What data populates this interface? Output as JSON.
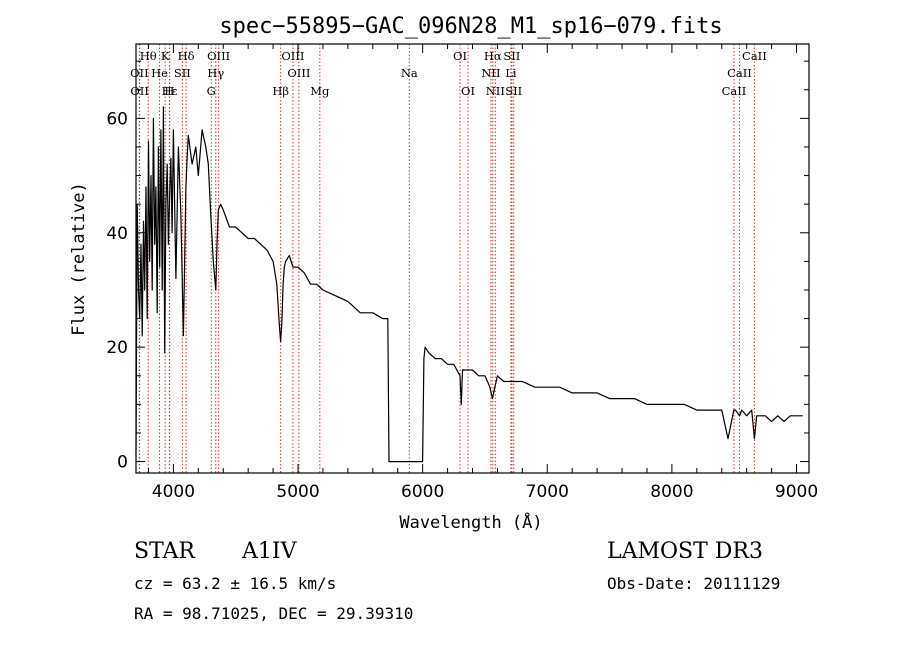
{
  "chart_data": {
    "type": "line",
    "title": "spec−55895−GAC_096N28_M1_sp16−079.fits",
    "xlabel": "Wavelength (Å)",
    "ylabel": "Flux (relative)",
    "xlim": [
      3700,
      9100
    ],
    "ylim": [
      -2,
      73
    ],
    "xticks": [
      4000,
      5000,
      6000,
      7000,
      8000,
      9000
    ],
    "xtick_labels": [
      "4000",
      "5000",
      "6000",
      "7000",
      "8000",
      "9000"
    ],
    "yticks": [
      0,
      20,
      40,
      60
    ],
    "ytick_labels": [
      "0",
      "20",
      "40",
      "60"
    ],
    "series": [
      {
        "name": "spectrum",
        "x": [
          3700,
          3710,
          3720,
          3730,
          3740,
          3750,
          3760,
          3770,
          3780,
          3790,
          3800,
          3810,
          3820,
          3830,
          3840,
          3850,
          3860,
          3870,
          3880,
          3890,
          3900,
          3910,
          3920,
          3930,
          3940,
          3950,
          3960,
          3970,
          3980,
          3990,
          4000,
          4020,
          4040,
          4060,
          4080,
          4100,
          4110,
          4120,
          4150,
          4180,
          4200,
          4230,
          4260,
          4280,
          4300,
          4320,
          4340,
          4350,
          4360,
          4380,
          4400,
          4450,
          4500,
          4550,
          4600,
          4650,
          4700,
          4750,
          4800,
          4830,
          4850,
          4860,
          4870,
          4880,
          4890,
          4900,
          4930,
          4960,
          5000,
          5050,
          5100,
          5150,
          5200,
          5300,
          5400,
          5500,
          5600,
          5680,
          5700,
          5720,
          5730,
          6000,
          6010,
          6020,
          6050,
          6100,
          6150,
          6200,
          6250,
          6300,
          6310,
          6320,
          6400,
          6450,
          6500,
          6540,
          6560,
          6580,
          6600,
          6650,
          6700,
          6750,
          6800,
          6900,
          7000,
          7100,
          7200,
          7300,
          7400,
          7500,
          7600,
          7700,
          7800,
          7900,
          8000,
          8100,
          8200,
          8300,
          8400,
          8450,
          8497,
          8510,
          8542,
          8560,
          8600,
          8640,
          8662,
          8680,
          8700,
          8750,
          8800,
          8850,
          8900,
          8950,
          9000,
          9050
        ],
        "y": [
          1,
          45,
          30,
          25,
          38,
          22,
          42,
          30,
          48,
          25,
          56,
          35,
          50,
          30,
          60,
          38,
          48,
          26,
          55,
          34,
          58,
          30,
          62,
          19,
          45,
          52,
          38,
          47,
          53,
          40,
          58,
          32,
          55,
          43,
          22,
          48,
          53,
          57,
          52,
          55,
          50,
          58,
          55,
          52,
          43,
          35,
          30,
          38,
          44,
          45,
          44,
          41,
          41,
          40,
          39,
          39,
          38,
          37,
          35,
          31,
          24,
          21,
          24,
          31,
          34,
          35,
          36,
          34,
          34,
          33,
          31,
          31,
          30,
          29,
          28,
          26,
          26,
          25,
          25,
          25,
          0,
          0,
          18,
          20,
          19,
          18,
          18,
          17,
          17,
          15,
          10,
          16,
          16,
          15,
          15,
          13,
          11,
          13,
          15,
          14,
          14,
          14,
          14,
          13,
          13,
          13,
          12,
          12,
          12,
          11,
          11,
          11,
          10,
          10,
          10,
          10,
          9,
          9,
          9,
          4,
          9,
          9,
          8,
          9,
          8,
          9,
          4,
          8,
          8,
          8,
          7,
          8,
          7,
          8,
          8,
          8
        ]
      }
    ],
    "lines": [
      {
        "label": "Hθ",
        "wave": 3798,
        "row": 1
      },
      {
        "label": "K",
        "wave": 3934,
        "row": 1
      },
      {
        "label": "Hδ",
        "wave": 4102,
        "row": 1
      },
      {
        "label": "OIII",
        "wave": 4363,
        "row": 1
      },
      {
        "label": "OIII",
        "wave": 4959,
        "row": 1
      },
      {
        "label": "OI",
        "wave": 6300,
        "row": 1
      },
      {
        "label": "Hα",
        "wave": 6563,
        "row": 1
      },
      {
        "label": "SII",
        "wave": 6716,
        "row": 1
      },
      {
        "label": "CaII",
        "wave": 8662,
        "row": 1
      },
      {
        "label": "OII",
        "wave": 3727,
        "row": 2
      },
      {
        "label": "He",
        "wave": 3889,
        "row": 2
      },
      {
        "label": "SII",
        "wave": 4072,
        "row": 2
      },
      {
        "label": "Hγ",
        "wave": 4340,
        "row": 2
      },
      {
        "label": "OIII",
        "wave": 5007,
        "row": 2
      },
      {
        "label": "Na",
        "wave": 5893,
        "row": 2
      },
      {
        "label": "NII",
        "wave": 6548,
        "row": 2
      },
      {
        "label": "Li",
        "wave": 6708,
        "row": 2
      },
      {
        "label": "CaII",
        "wave": 8542,
        "row": 2
      },
      {
        "label": "OII",
        "wave": 3729,
        "row": 3
      },
      {
        "label": "Hε",
        "wave": 3970,
        "row": 3
      },
      {
        "label": "H",
        "wave": 3968,
        "row": 3
      },
      {
        "label": "G",
        "wave": 4304,
        "row": 3
      },
      {
        "label": "Hβ",
        "wave": 4861,
        "row": 3
      },
      {
        "label": "Mg",
        "wave": 5175,
        "row": 3
      },
      {
        "label": "OI",
        "wave": 6364,
        "row": 3
      },
      {
        "label": "NII",
        "wave": 6583,
        "row": 3
      },
      {
        "label": "SII",
        "wave": 6731,
        "row": 3
      },
      {
        "label": "CaII",
        "wave": 8498,
        "row": 3
      }
    ]
  },
  "info": {
    "object_class": "STAR",
    "subclass": "A1IV",
    "survey": "LAMOST DR3",
    "cz": "cz = 63.2 ± 16.5 km/s",
    "obs_date": "Obs-Date: 20111129",
    "coords": "RA =  98.71025, DEC =  29.39310"
  },
  "colors": {
    "spectrum": "#000000",
    "line_marker": "#c0392b",
    "axis": "#000000",
    "background": "#ffffff"
  }
}
